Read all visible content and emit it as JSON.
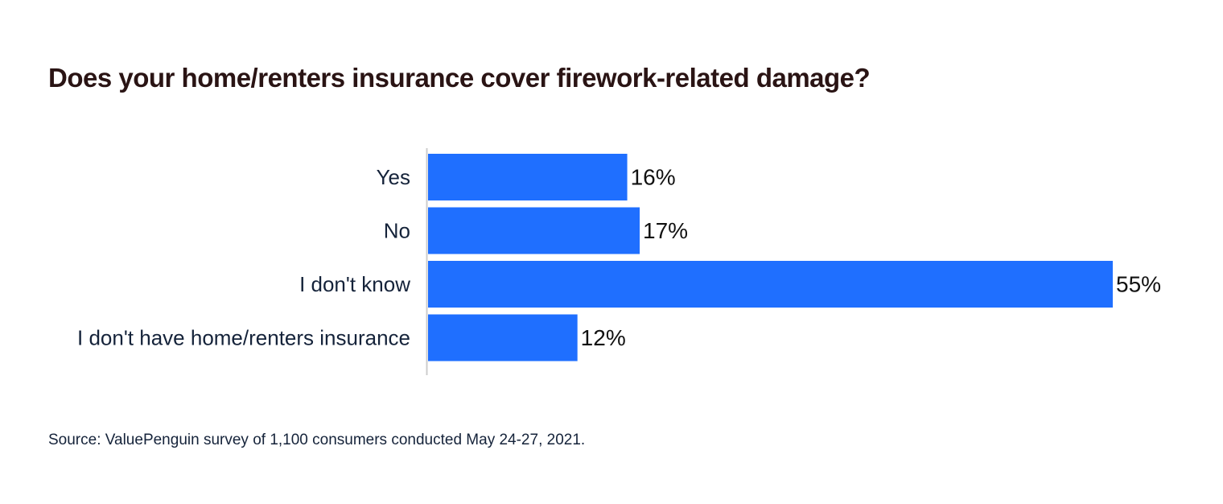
{
  "chart_data": {
    "type": "bar",
    "orientation": "horizontal",
    "title": "Does your home/renters insurance cover firework-related damage?",
    "categories": [
      "Yes",
      "No",
      "I don't know",
      "I don't have home/renters insurance"
    ],
    "values": [
      16,
      17,
      55,
      12
    ],
    "value_labels": [
      "16%",
      "17%",
      "55%",
      "12%"
    ],
    "xlim": [
      0,
      55
    ],
    "grid": false,
    "bar_color": "#1f6fff",
    "axis_color": "#cccccc"
  },
  "source": "Source: ValuePenguin survey of 1,100 consumers conducted May 24-27, 2021."
}
